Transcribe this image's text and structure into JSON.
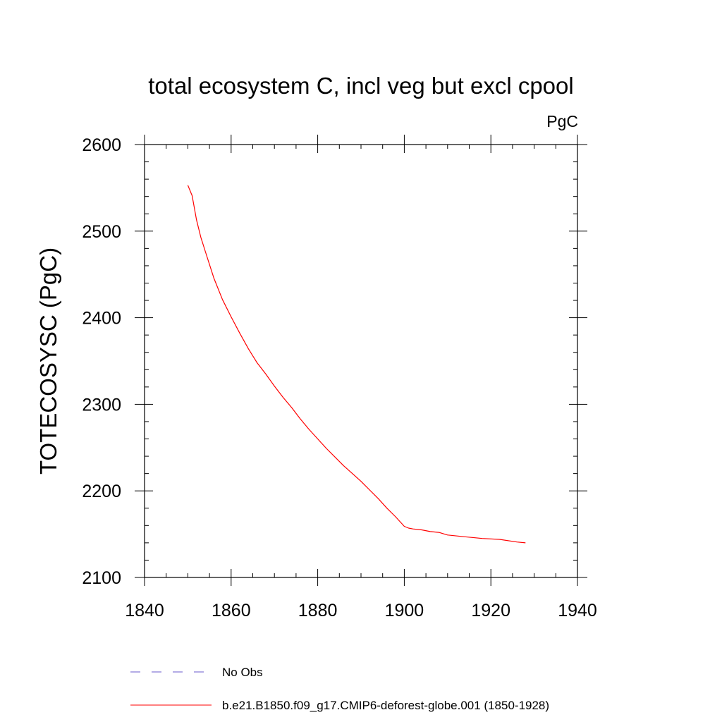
{
  "chart_data": {
    "type": "line",
    "title": "total ecosystem C, incl veg but excl cpool",
    "units_label": "PgC",
    "ylabel": "TOTECOSYSC  (PgC)",
    "xlabel": "",
    "xlim": [
      1840,
      1940
    ],
    "ylim": [
      2100,
      2600
    ],
    "xticks": [
      1840,
      1860,
      1880,
      1900,
      1920,
      1940
    ],
    "yticks": [
      2100,
      2200,
      2300,
      2400,
      2500,
      2600
    ],
    "xtick_labels": [
      "1840",
      "1860",
      "1880",
      "1900",
      "1920",
      "1940"
    ],
    "ytick_labels": [
      "2100",
      "2200",
      "2300",
      "2400",
      "2500",
      "2600"
    ],
    "grid": false,
    "legend_position": "bottom",
    "legend": [
      {
        "label": "No Obs",
        "color": "#6a5acd",
        "style": "dashed"
      },
      {
        "label": "b.e21.B1850.f09_g17.CMIP6-deforest-globe.001 (1850-1928)",
        "color": "#ff0000",
        "style": "solid"
      }
    ],
    "series": [
      {
        "name": "b.e21.B1850.f09_g17.CMIP6-deforest-globe.001 (1850-1928)",
        "color": "#ff0000",
        "x": [
          1850,
          1851,
          1852,
          1853,
          1854,
          1856,
          1858,
          1860,
          1862,
          1864,
          1866,
          1868,
          1870,
          1872,
          1874,
          1876,
          1878,
          1880,
          1882,
          1884,
          1886,
          1888,
          1890,
          1892,
          1894,
          1896,
          1898,
          1900,
          1901,
          1902,
          1904,
          1906,
          1908,
          1910,
          1914,
          1918,
          1922,
          1926,
          1928
        ],
        "y": [
          2553,
          2541,
          2513,
          2493,
          2477,
          2446,
          2421,
          2401,
          2382,
          2364,
          2348,
          2335,
          2321,
          2308,
          2296,
          2283,
          2271,
          2260,
          2249,
          2239,
          2229,
          2220,
          2211,
          2201,
          2191,
          2180,
          2170,
          2159,
          2157,
          2156,
          2155,
          2153,
          2152,
          2149,
          2147,
          2145,
          2144,
          2141,
          2140
        ]
      }
    ]
  }
}
